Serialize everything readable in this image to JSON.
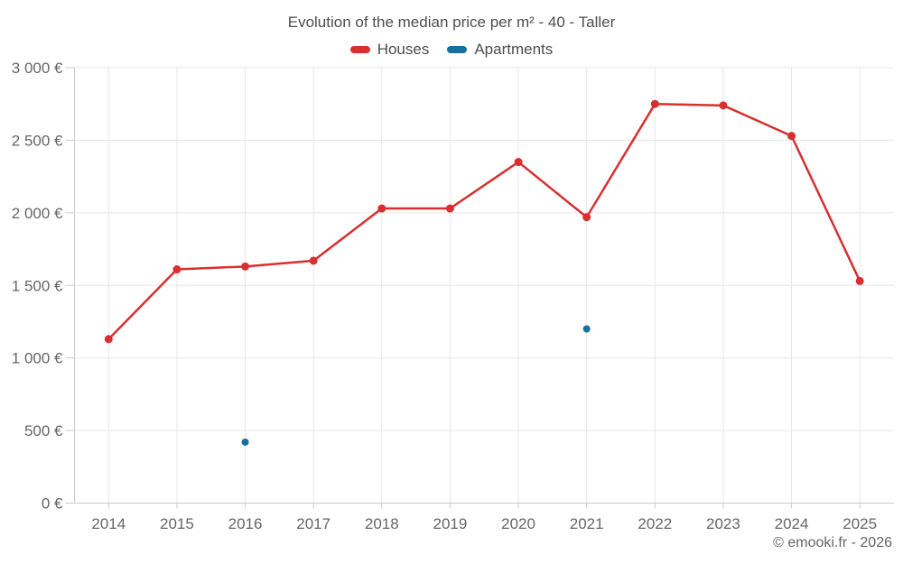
{
  "header": {
    "title": "Evolution of the median price per m² - 40 - Taller"
  },
  "legend": {
    "items": [
      {
        "label": "Houses",
        "color": "#d7302f"
      },
      {
        "label": "Apartments",
        "color": "#17709e"
      }
    ]
  },
  "footer": {
    "copyright": "© emooki.fr - 2026"
  },
  "chart_data": {
    "type": "line",
    "title": "Evolution of the median price per m² - 40 - Taller",
    "categories": [
      "2014",
      "2015",
      "2016",
      "2017",
      "2018",
      "2019",
      "2020",
      "2021",
      "2022",
      "2023",
      "2024",
      "2025"
    ],
    "series": [
      {
        "name": "Houses",
        "type": "line",
        "color": "#d7302f",
        "values": [
          1130,
          1610,
          1630,
          1670,
          2030,
          2030,
          2350,
          1970,
          2750,
          2740,
          2530,
          1530
        ]
      },
      {
        "name": "Apartments",
        "type": "scatter",
        "color": "#17709e",
        "points": [
          {
            "category": "2016",
            "value": 420
          },
          {
            "category": "2021",
            "value": 1200
          }
        ]
      }
    ],
    "xlabel": "",
    "ylabel": "",
    "ylim": [
      0,
      3000
    ],
    "ytick_step": 500,
    "ytick_suffix": " €",
    "grid": true,
    "legend_position": "top",
    "colors": {
      "grid_line": "#e7e7e7",
      "axis_line": "#cccccc",
      "tick_label": "#666666"
    }
  }
}
